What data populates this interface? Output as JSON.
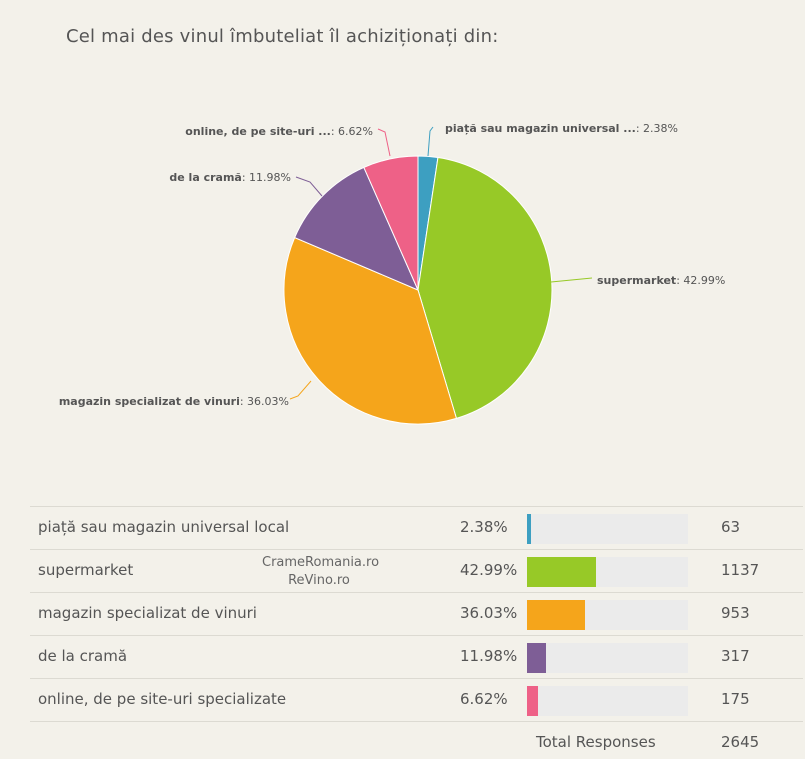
{
  "chart_data": {
    "type": "pie",
    "title": "Cel mai des vinul îmbuteliat îl achiziționați din:",
    "slices": [
      {
        "label": "piață sau magazin universal ...",
        "full_label": "piață sau magazin universal local",
        "percent": 2.38,
        "percent_text": "2.38%",
        "count": 63,
        "color": "#3d9fc1"
      },
      {
        "label": "supermarket",
        "full_label": "supermarket",
        "percent": 42.99,
        "percent_text": "42.99%",
        "count": 1137,
        "color": "#97c927"
      },
      {
        "label": "magazin specializat de vinuri",
        "full_label": "magazin specializat de vinuri",
        "percent": 36.03,
        "percent_text": "36.03%",
        "count": 953,
        "color": "#f5a51b"
      },
      {
        "label": "de la cramă",
        "full_label": "de la cramă",
        "percent": 11.98,
        "percent_text": "11.98%",
        "count": 317,
        "color": "#7e5e96"
      },
      {
        "label": "online, de pe site-uri ...",
        "full_label": "online, de pe site-uri specializate",
        "percent": 6.62,
        "percent_text": "6.62%",
        "count": 175,
        "color": "#ee6187"
      }
    ]
  },
  "total": {
    "label": "Total Responses",
    "value": "2645"
  },
  "watermark": {
    "line1": "CrameRomania.ro",
    "line2": "ReVino.ro"
  }
}
